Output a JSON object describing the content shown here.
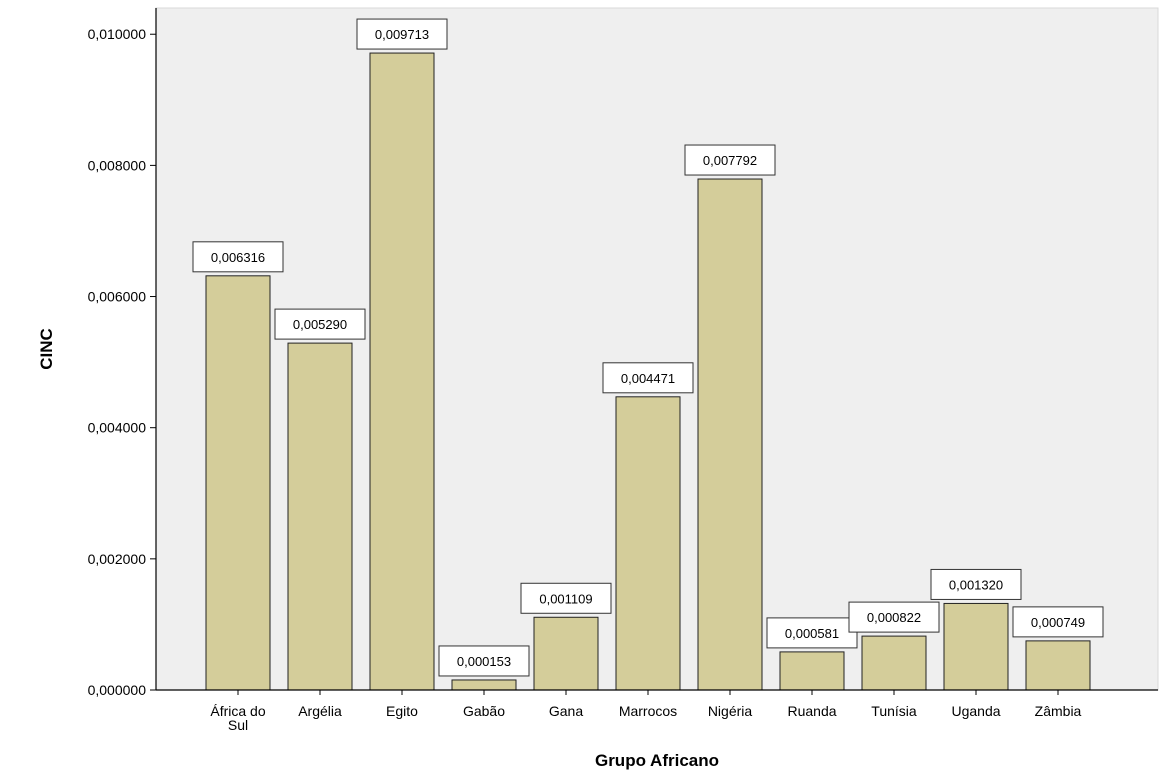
{
  "chart_data": {
    "type": "bar",
    "title": "",
    "xlabel": "Grupo Africano",
    "ylabel": "CINC",
    "categories": [
      "África do Sul",
      "Argélia",
      "Egito",
      "Gabão",
      "Gana",
      "Marrocos",
      "Nigéria",
      "Ruanda",
      "Tunísia",
      "Uganda",
      "Zâmbia"
    ],
    "values": [
      0.006316,
      0.00529,
      0.009713,
      0.000153,
      0.001109,
      0.004471,
      0.007792,
      0.000581,
      0.000822,
      0.00132,
      0.000749
    ],
    "value_labels": [
      "0,006316",
      "0,005290",
      "0,009713",
      "0,000153",
      "0,001109",
      "0,004471",
      "0,007792",
      "0,000581",
      "0,000822",
      "0,001320",
      "0,000749"
    ],
    "y_ticks": [
      0,
      0.002,
      0.004,
      0.006,
      0.008,
      0.01
    ],
    "y_tick_labels": [
      "0,000000",
      "0,002000",
      "0,004000",
      "0,006000",
      "0,008000",
      "0,010000"
    ],
    "ylim": [
      0,
      0.0104
    ],
    "grid": false,
    "legend": "none",
    "colors": {
      "bar_fill": "#d4cd9a",
      "bar_stroke": "#222222",
      "plot_background": "#efefef"
    }
  }
}
